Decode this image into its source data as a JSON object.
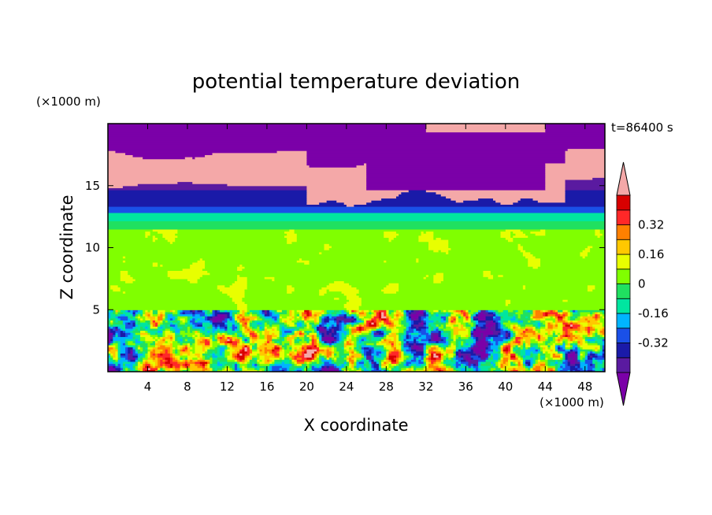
{
  "chart_data": {
    "type": "heatmap",
    "title": "potential temperature deviation",
    "time_label": "t=86400 s",
    "xlabel": "X coordinate",
    "ylabel": "Z coordinate",
    "x_unit": "(×1000 m)",
    "y_unit": "(×1000 m)",
    "xlim": [
      0,
      50
    ],
    "ylim": [
      0,
      20
    ],
    "x_ticks": [
      4,
      8,
      12,
      16,
      20,
      24,
      28,
      32,
      36,
      40,
      44,
      48
    ],
    "y_ticks": [
      5,
      10,
      15
    ],
    "colorbar": {
      "levels": [
        -0.48,
        -0.4,
        -0.32,
        -0.24,
        -0.16,
        -0.08,
        0,
        0.08,
        0.16,
        0.24,
        0.32,
        0.4,
        0.48
      ],
      "tick_labels": [
        "-0.32",
        "-0.16",
        "0",
        "0.16",
        "0.32"
      ],
      "tick_values": [
        -0.32,
        -0.16,
        0,
        0.16,
        0.32
      ],
      "under_color": "#7b00a8",
      "over_color": "#f4a8a8",
      "colors": [
        "#5a1aa0",
        "#1a1aa8",
        "#1a50e8",
        "#00b4ff",
        "#00e6a0",
        "#20e060",
        "#80ff00",
        "#e8ff00",
        "#ffc800",
        "#ff8000",
        "#ff2828",
        "#d80000"
      ]
    },
    "layers": [
      {
        "z_range": [
          17.5,
          20
        ],
        "value": -0.55,
        "description": "upper purple"
      },
      {
        "z_range": [
          15.5,
          17.5
        ],
        "value": 0.6,
        "description": "pink band"
      },
      {
        "z_range": [
          14,
          15.5
        ],
        "value": -0.4,
        "description": "dark blue"
      },
      {
        "z_range": [
          12.5,
          14
        ],
        "value": -0.3,
        "description": "blue"
      },
      {
        "z_range": [
          12,
          12.5
        ],
        "value": -0.15,
        "description": "cyan"
      },
      {
        "z_range": [
          5,
          12
        ],
        "value": 0.02,
        "description": "green mid layer"
      },
      {
        "z_range": [
          0,
          5
        ],
        "value": 0.0,
        "description": "turbulent boundary layer"
      }
    ]
  }
}
